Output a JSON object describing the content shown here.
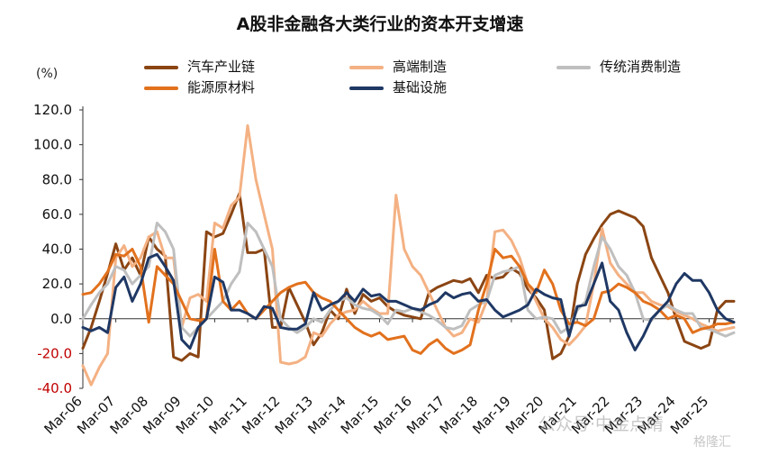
{
  "title": "A股非金融各大类行业的资本开支增速",
  "unit": "(%)",
  "watermark": "公众号·中金点睛",
  "watermark2": "格隆汇",
  "chart_data": {
    "type": "line",
    "ylim": [
      -40,
      120
    ],
    "yticks": [
      "120.0",
      "100.0",
      "80.0",
      "60.0",
      "40.0",
      "20.0",
      "0.0",
      "-20.0",
      "-40.0"
    ],
    "xticks": [
      "Mar-06",
      "Mar-07",
      "Mar-08",
      "Mar-09",
      "Mar-10",
      "Mar-11",
      "Mar-12",
      "Mar-13",
      "Mar-14",
      "Mar-15",
      "Mar-16",
      "Mar-17",
      "Mar-18",
      "Mar-19",
      "Mar-20",
      "Mar-21",
      "Mar-22",
      "Mar-23",
      "Mar-24",
      "Mar-25"
    ],
    "grid": false,
    "legend_position": "top",
    "series": [
      {
        "name": "汽车产业链",
        "color": "#8B4513",
        "values": [
          -17,
          -5,
          10,
          26,
          43,
          28,
          35,
          25,
          47,
          40,
          36,
          -22,
          -24,
          -20,
          -22,
          50,
          47,
          49,
          60,
          72,
          38,
          38,
          40,
          -5,
          -5,
          18,
          8,
          -2,
          -15,
          -8,
          5,
          0,
          17,
          3,
          14,
          10,
          12,
          7,
          4,
          2,
          1,
          0,
          15,
          18,
          20,
          22,
          21,
          23,
          15,
          25,
          23,
          24,
          29,
          26,
          17,
          12,
          5,
          -23,
          -20,
          -10,
          20,
          37,
          46,
          54,
          60,
          62,
          60,
          58,
          53,
          35,
          25,
          15,
          0,
          -13,
          -15,
          -17,
          -15,
          5,
          10,
          10
        ]
      },
      {
        "name": "高端制造",
        "color": "#F4B183",
        "values": [
          -27,
          -38,
          -28,
          -20,
          35,
          42,
          30,
          35,
          47,
          50,
          35,
          35,
          -5,
          12,
          14,
          10,
          55,
          52,
          65,
          70,
          111,
          80,
          60,
          40,
          -25,
          -26,
          -25,
          -22,
          -8,
          -10,
          -3,
          2,
          4,
          5,
          10,
          6,
          3,
          3,
          71,
          40,
          30,
          25,
          15,
          5,
          -5,
          -10,
          -8,
          0,
          -2,
          10,
          50,
          51,
          45,
          35,
          20,
          10,
          0,
          -5,
          -12,
          -15,
          -10,
          -4,
          20,
          52,
          32,
          25,
          20,
          15,
          15,
          10,
          8,
          7,
          4,
          2,
          0,
          -3,
          -5,
          -7,
          -6,
          -5
        ]
      },
      {
        "name": "传统消费制造",
        "color": "#BFBFBF",
        "values": [
          0,
          8,
          15,
          20,
          30,
          28,
          20,
          25,
          30,
          55,
          50,
          40,
          -5,
          -10,
          -5,
          0,
          5,
          10,
          20,
          27,
          55,
          50,
          40,
          30,
          0,
          -5,
          -8,
          -5,
          0,
          -2,
          5,
          10,
          12,
          8,
          6,
          5,
          2,
          -3,
          5,
          4,
          6,
          4,
          2,
          -1,
          -5,
          -6,
          -4,
          5,
          8,
          10,
          25,
          27,
          28,
          30,
          5,
          0,
          1,
          0,
          -8,
          -5,
          5,
          10,
          30,
          47,
          40,
          30,
          25,
          15,
          0,
          -1,
          5,
          8,
          5,
          3,
          3,
          -5,
          -6,
          -8,
          -10,
          -8
        ]
      },
      {
        "name": "能源原材料",
        "color": "#E2711D",
        "values": [
          14,
          15,
          20,
          27,
          37,
          36,
          40,
          30,
          -2,
          30,
          25,
          20,
          10,
          0,
          -1,
          0,
          40,
          10,
          5,
          10,
          3,
          0,
          5,
          10,
          15,
          18,
          20,
          21,
          15,
          12,
          10,
          5,
          0,
          -5,
          -8,
          -10,
          -8,
          -12,
          -11,
          -10,
          -18,
          -20,
          -15,
          -12,
          -17,
          -20,
          -18,
          -15,
          5,
          20,
          40,
          35,
          36,
          30,
          20,
          15,
          28,
          20,
          5,
          -3,
          -2,
          -4,
          0,
          15,
          16,
          20,
          18,
          15,
          10,
          8,
          5,
          0,
          2,
          0,
          -8,
          -6,
          -5,
          -3,
          -3,
          -2
        ]
      },
      {
        "name": "基础设施",
        "color": "#1F3864",
        "values": [
          -5,
          -7,
          -5,
          -8,
          18,
          24,
          10,
          20,
          35,
          37,
          30,
          22,
          -12,
          -17,
          -5,
          0,
          24,
          21,
          5,
          5,
          3,
          0,
          7,
          6,
          -5,
          -6,
          -6,
          -3,
          15,
          5,
          8,
          10,
          15,
          10,
          17,
          13,
          14,
          10,
          10,
          8,
          6,
          5,
          8,
          10,
          15,
          12,
          14,
          15,
          10,
          11,
          5,
          1,
          3,
          5,
          8,
          17,
          14,
          12,
          11,
          -10,
          7,
          8,
          20,
          32,
          10,
          5,
          -8,
          -18,
          -10,
          0,
          5,
          10,
          20,
          26,
          22,
          22,
          15,
          5,
          0,
          -2
        ]
      }
    ]
  }
}
